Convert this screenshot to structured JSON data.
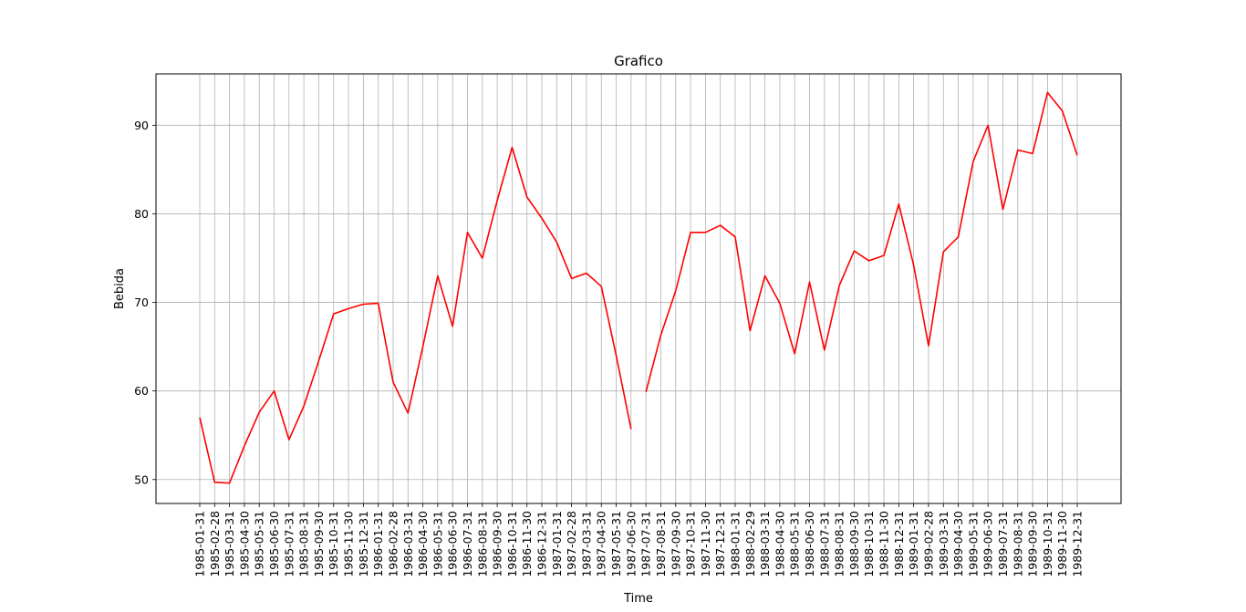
{
  "chart_data": {
    "type": "line",
    "title": "Grafico",
    "xlabel": "Time",
    "ylabel": "Bebida",
    "ylim": [
      47.3,
      95.8
    ],
    "yticks": [
      50,
      60,
      70,
      80,
      90
    ],
    "grid": true,
    "series": [
      {
        "color": "#ff0000",
        "x": [
          "1985-01-31",
          "1985-02-28",
          "1985-03-31",
          "1985-04-30",
          "1985-05-31",
          "1985-06-30",
          "1985-07-31",
          "1985-08-31",
          "1985-09-30",
          "1985-10-31",
          "1985-11-30",
          "1985-12-31",
          "1986-01-31",
          "1986-02-28",
          "1986-03-31",
          "1986-04-30",
          "1986-05-31",
          "1986-06-30",
          "1986-07-31",
          "1986-08-31",
          "1986-09-30",
          "1986-10-31",
          "1986-11-30",
          "1986-12-31",
          "1987-01-31",
          "1987-02-28",
          "1987-03-31",
          "1987-04-30",
          "1987-05-31",
          "1987-06-30",
          "1987-07-31",
          "1987-08-31",
          "1987-09-30",
          "1987-10-31",
          "1987-11-30",
          "1987-12-31",
          "1988-01-31",
          "1988-02-29",
          "1988-03-31",
          "1988-04-30",
          "1988-05-31",
          "1988-06-30",
          "1988-07-31",
          "1988-08-31",
          "1988-09-30",
          "1988-10-31",
          "1988-11-30",
          "1988-12-31",
          "1989-01-31",
          "1989-02-28",
          "1989-03-31",
          "1989-04-30",
          "1989-05-31",
          "1989-06-30",
          "1989-07-31",
          "1989-08-31",
          "1989-09-30",
          "1989-10-31",
          "1989-11-30",
          "1989-12-31"
        ],
        "values": [
          57.0,
          49.7,
          49.6,
          53.8,
          57.6,
          60.0,
          54.5,
          58.3,
          63.4,
          68.7,
          69.3,
          69.8,
          69.9,
          61.0,
          57.5,
          65.0,
          73.0,
          67.3,
          77.9,
          75.0,
          81.5,
          87.5,
          81.9,
          79.5,
          76.8,
          72.7,
          73.3,
          71.8,
          64.0,
          55.7,
          null,
          66.3,
          71.3,
          77.9,
          77.9,
          78.7,
          77.4,
          66.8,
          73.0,
          69.9,
          64.2,
          72.3,
          64.6,
          71.9,
          75.8,
          74.7,
          75.3,
          81.1,
          74.2,
          65.1,
          75.7,
          77.4,
          85.9,
          90.0,
          80.5,
          87.2,
          86.8,
          93.7,
          91.6,
          86.6
        ]
      }
    ],
    "missing_note_ignored": true,
    "gap_after": "1987-06-30",
    "segment2_start_value": 59.9
  }
}
